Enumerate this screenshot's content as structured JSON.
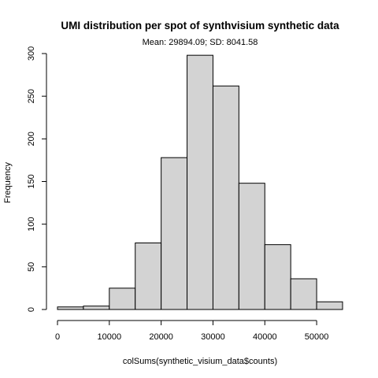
{
  "chart_data": {
    "type": "bar",
    "title": "UMI distribution per spot of synthvisium synthetic data",
    "subtitle": "Mean: 29894.09; SD: 8041.58",
    "xlabel": "colSums(synthetic_visium_data$counts)",
    "ylabel": "Frequency",
    "bin_width": 5000,
    "bins": [
      {
        "start": 0,
        "end": 5000,
        "count": 3
      },
      {
        "start": 5000,
        "end": 10000,
        "count": 4
      },
      {
        "start": 10000,
        "end": 15000,
        "count": 25
      },
      {
        "start": 15000,
        "end": 20000,
        "count": 78
      },
      {
        "start": 20000,
        "end": 25000,
        "count": 178
      },
      {
        "start": 25000,
        "end": 30000,
        "count": 298
      },
      {
        "start": 30000,
        "end": 35000,
        "count": 262
      },
      {
        "start": 35000,
        "end": 40000,
        "count": 148
      },
      {
        "start": 40000,
        "end": 45000,
        "count": 76
      },
      {
        "start": 45000,
        "end": 50000,
        "count": 36
      },
      {
        "start": 50000,
        "end": 55000,
        "count": 9
      }
    ],
    "xlim": [
      0,
      55000
    ],
    "ylim": [
      0,
      300
    ],
    "x_ticks": [
      0,
      10000,
      20000,
      30000,
      40000,
      50000
    ],
    "x_tick_labels": [
      "0",
      "10000",
      "20000",
      "30000",
      "40000",
      "50000"
    ],
    "y_ticks": [
      0,
      50,
      100,
      150,
      200,
      250,
      300
    ],
    "y_tick_labels": [
      "0",
      "50",
      "100",
      "150",
      "200",
      "250",
      "300"
    ],
    "bar_fill": "#d3d3d3",
    "bar_stroke": "#000000",
    "grid": false,
    "legend": "none"
  }
}
